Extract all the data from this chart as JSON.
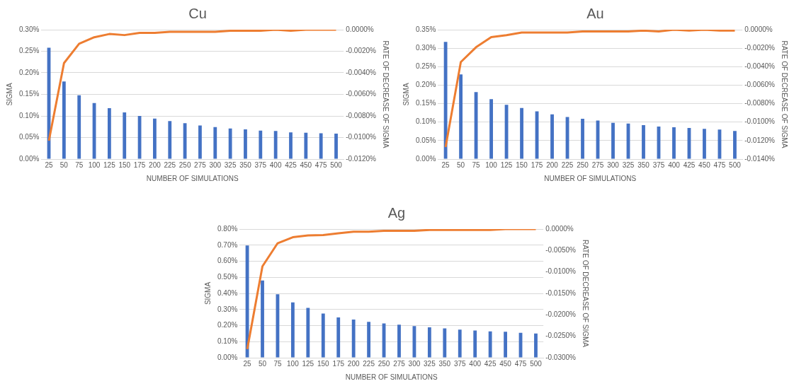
{
  "chart_data": [
    {
      "type": "bar",
      "title": "Cu",
      "xlabel": "NUMBER OF SIMULATIONS",
      "ylabel": "SIGMA",
      "y2label": "RATE OF DECREASE OF SIGMA",
      "categories": [
        "25",
        "50",
        "75",
        "100",
        "125",
        "150",
        "175",
        "200",
        "225",
        "250",
        "275",
        "300",
        "325",
        "350",
        "375",
        "400",
        "425",
        "450",
        "475",
        "500"
      ],
      "grid": "y",
      "legend": false,
      "series": [
        {
          "color": "#4472c4",
          "values": [
            0.258,
            0.18,
            0.148,
            0.13,
            0.118,
            0.108,
            0.1,
            0.094,
            0.088,
            0.083,
            0.078,
            0.074,
            0.071,
            0.069,
            0.066,
            0.065,
            0.062,
            0.061,
            0.06,
            0.059
          ]
        },
        {
          "type": "line",
          "axis": "y2",
          "color": "#ed7d31",
          "values": [
            -0.0103,
            -0.0031,
            -0.0013,
            -0.0007,
            -0.0004,
            -0.0005,
            -0.0003,
            -0.0003,
            -0.0002,
            -0.0002,
            -0.0002,
            -0.0002,
            -0.0001,
            -0.0001,
            -0.0001,
            0,
            -0.0001,
            0,
            0,
            0
          ]
        }
      ],
      "ylim": [
        0,
        0.3
      ],
      "yticks": [
        {
          "value": 0,
          "label": "0.00%"
        },
        {
          "value": 0.05,
          "label": "0.05%"
        },
        {
          "value": 0.1,
          "label": "0.10%"
        },
        {
          "value": 0.15,
          "label": "0.15%"
        },
        {
          "value": 0.2,
          "label": "0.20%"
        },
        {
          "value": 0.25,
          "label": "0.25%"
        },
        {
          "value": 0.3,
          "label": "0.30%"
        }
      ],
      "y2lim": [
        -0.012,
        0
      ],
      "y2ticks": [
        {
          "value": -0.012,
          "label": "-0.0120%"
        },
        {
          "value": -0.01,
          "label": "-0.0100%"
        },
        {
          "value": -0.008,
          "label": "-0.0080%"
        },
        {
          "value": -0.006,
          "label": "-0.0060%"
        },
        {
          "value": -0.004,
          "label": "-0.0040%"
        },
        {
          "value": -0.002,
          "label": "-0.0020%"
        },
        {
          "value": 0,
          "label": "0.0000%"
        }
      ]
    },
    {
      "type": "bar",
      "title": "Au",
      "xlabel": "NUMBER OF SIMULATIONS",
      "ylabel": "SIGMA",
      "y2label": "RATE OF DECREASE OF SIGMA",
      "categories": [
        "25",
        "50",
        "75",
        "100",
        "125",
        "150",
        "175",
        "200",
        "225",
        "250",
        "275",
        "300",
        "325",
        "350",
        "375",
        "400",
        "425",
        "450",
        "475",
        "500"
      ],
      "grid": "y",
      "legend": false,
      "series": [
        {
          "color": "#4472c4",
          "values": [
            0.317,
            0.229,
            0.181,
            0.162,
            0.147,
            0.138,
            0.129,
            0.121,
            0.114,
            0.109,
            0.104,
            0.098,
            0.096,
            0.092,
            0.088,
            0.086,
            0.084,
            0.082,
            0.08,
            0.076
          ]
        },
        {
          "type": "line",
          "axis": "y2",
          "color": "#ed7d31",
          "values": [
            -0.0127,
            -0.0035,
            -0.0019,
            -0.0008,
            -0.0006,
            -0.0003,
            -0.0003,
            -0.0003,
            -0.0003,
            -0.0002,
            -0.0002,
            -0.0002,
            -0.0002,
            -0.0001,
            -0.0002,
            0,
            -0.0001,
            0,
            -0.0001,
            -0.0001
          ]
        }
      ],
      "ylim": [
        0,
        0.35
      ],
      "yticks": [
        {
          "value": 0,
          "label": "0.00%"
        },
        {
          "value": 0.05,
          "label": "0.05%"
        },
        {
          "value": 0.1,
          "label": "0.10%"
        },
        {
          "value": 0.15,
          "label": "0.15%"
        },
        {
          "value": 0.2,
          "label": "0.20%"
        },
        {
          "value": 0.25,
          "label": "0.25%"
        },
        {
          "value": 0.3,
          "label": "0.30%"
        },
        {
          "value": 0.35,
          "label": "0.35%"
        }
      ],
      "y2lim": [
        -0.014,
        0
      ],
      "y2ticks": [
        {
          "value": -0.014,
          "label": "-0.0140%"
        },
        {
          "value": -0.012,
          "label": "-0.0120%"
        },
        {
          "value": -0.01,
          "label": "-0.0100%"
        },
        {
          "value": -0.008,
          "label": "-0.0080%"
        },
        {
          "value": -0.006,
          "label": "-0.0060%"
        },
        {
          "value": -0.004,
          "label": "-0.0040%"
        },
        {
          "value": -0.002,
          "label": "-0.0020%"
        },
        {
          "value": 0,
          "label": "0.0000%"
        }
      ]
    },
    {
      "type": "bar",
      "title": "Ag",
      "xlabel": "NUMBER OF SIMULATIONS",
      "ylabel": "SIGMA",
      "y2label": "RATE OF DECREASE OF SIGMA",
      "categories": [
        "25",
        "50",
        "75",
        "100",
        "125",
        "150",
        "175",
        "200",
        "225",
        "250",
        "275",
        "300",
        "325",
        "350",
        "375",
        "400",
        "425",
        "450",
        "475",
        "500"
      ],
      "grid": "y",
      "legend": false,
      "series": [
        {
          "color": "#4472c4",
          "values": [
            0.698,
            0.48,
            0.394,
            0.344,
            0.31,
            0.275,
            0.251,
            0.237,
            0.223,
            0.213,
            0.206,
            0.197,
            0.189,
            0.182,
            0.175,
            0.169,
            0.164,
            0.161,
            0.155,
            0.151
          ]
        },
        {
          "type": "line",
          "axis": "y2",
          "color": "#ed7d31",
          "values": [
            -0.028,
            -0.0087,
            -0.0033,
            -0.0019,
            -0.0015,
            -0.0014,
            -0.001,
            -0.0006,
            -0.0006,
            -0.0004,
            -0.0004,
            -0.0004,
            -0.0002,
            -0.0002,
            -0.0002,
            -0.0002,
            -0.0002,
            0,
            0,
            0
          ]
        }
      ],
      "ylim": [
        0,
        0.8
      ],
      "yticks": [
        {
          "value": 0,
          "label": "0.00%"
        },
        {
          "value": 0.1,
          "label": "0.10%"
        },
        {
          "value": 0.2,
          "label": "0.20%"
        },
        {
          "value": 0.3,
          "label": "0.30%"
        },
        {
          "value": 0.4,
          "label": "0.40%"
        },
        {
          "value": 0.5,
          "label": "0.50%"
        },
        {
          "value": 0.6,
          "label": "0.60%"
        },
        {
          "value": 0.7,
          "label": "0.70%"
        },
        {
          "value": 0.8,
          "label": "0.80%"
        }
      ],
      "y2lim": [
        -0.03,
        0
      ],
      "y2ticks": [
        {
          "value": -0.03,
          "label": "-0.0300%"
        },
        {
          "value": -0.025,
          "label": "-0.0250%"
        },
        {
          "value": -0.02,
          "label": "-0.0200%"
        },
        {
          "value": -0.015,
          "label": "-0.0150%"
        },
        {
          "value": -0.01,
          "label": "-0.0100%"
        },
        {
          "value": -0.005,
          "label": "-0.0050%"
        },
        {
          "value": 0,
          "label": "0.0000%"
        }
      ]
    }
  ]
}
